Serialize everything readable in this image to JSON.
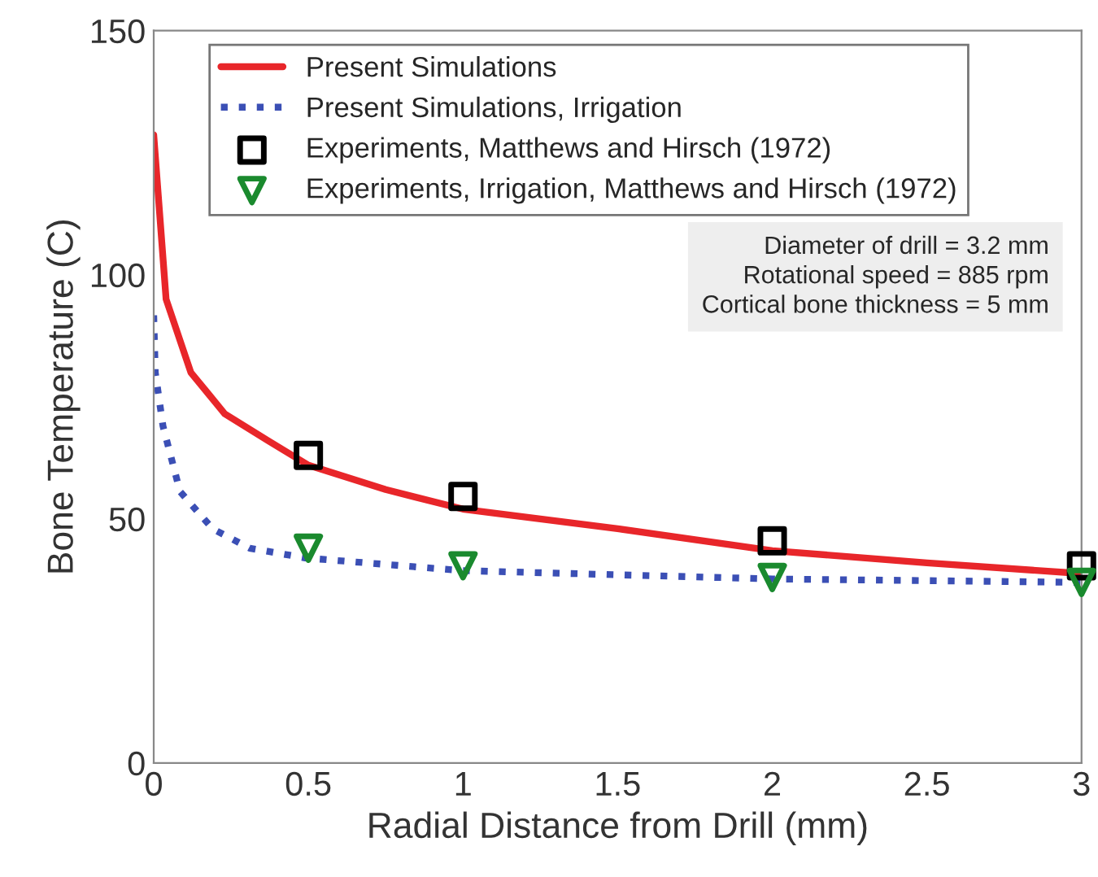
{
  "chart_data": {
    "type": "line",
    "xlabel": "Radial Distance from Drill (mm)",
    "ylabel": "Bone Temperature (C)",
    "xlim": [
      0,
      3
    ],
    "ylim": [
      0,
      150
    ],
    "xticks": [
      0,
      0.5,
      1,
      1.5,
      2,
      2.5,
      3
    ],
    "yticks": [
      0,
      50,
      100,
      150
    ],
    "grid": false,
    "legend": "top left",
    "series": [
      {
        "name": "Present Simulations",
        "color": "#e8262a",
        "line_style": "solid",
        "marker": "none",
        "x": [
          0,
          0.04,
          0.12,
          0.23,
          0.37,
          0.5,
          0.75,
          1.0,
          1.5,
          2.0,
          2.5,
          3.0
        ],
        "values": [
          128.7,
          95,
          80,
          71.5,
          66,
          61,
          56,
          52,
          48,
          43.5,
          41,
          38.8
        ]
      },
      {
        "name": "Present Simulations, Irrigation",
        "color": "#3b4fb5",
        "line_style": "dotted",
        "marker": "none",
        "x": [
          0,
          0.005,
          0.03,
          0.085,
          0.19,
          0.31,
          0.49,
          1.0,
          2.0,
          3.0
        ],
        "values": [
          91.7,
          80,
          69,
          55.6,
          48,
          44,
          42,
          39.4,
          37.7,
          37
        ]
      },
      {
        "name": "Experiments, Matthews and Hirsch (1972)",
        "type": "scatter",
        "color": "#000000",
        "marker": "square",
        "x": [
          0.5,
          1,
          2,
          3
        ],
        "values": [
          63,
          54.6,
          45.5,
          40.4
        ]
      },
      {
        "name": "Experiments, Irrigation, Matthews and Hirsch (1972)",
        "type": "scatter",
        "color": "#1a8a2e",
        "marker": "triangle",
        "x": [
          0.5,
          1,
          2,
          3
        ],
        "values": [
          44,
          40.4,
          38,
          37
        ]
      }
    ],
    "annotations": [
      "Diameter of drill = 3.2 mm\nRotational speed = 885 rpm\nCortical bone thickness = 5 mm"
    ]
  }
}
